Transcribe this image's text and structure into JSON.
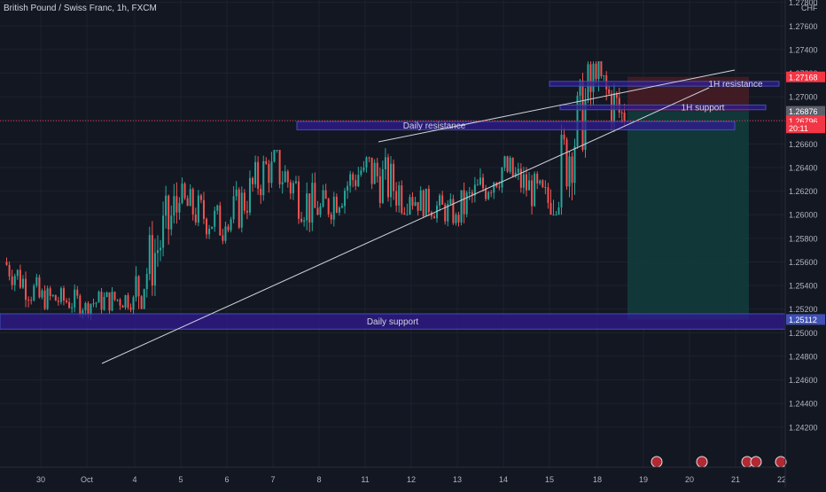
{
  "header": {
    "symbol_title": "British Pound / Swiss Franc, 1h, FXCM"
  },
  "colors": {
    "background": "#131722",
    "bull": "#26a69a",
    "bear": "#ef5350",
    "zone_fill": "#311b92",
    "zone_border": "#3f51b5",
    "trendline": "#d1d4dc",
    "grid": "#1e222d",
    "axis_text": "#b2b5be",
    "stop_zone": "#4a1c24",
    "target_zone": "#123d3d"
  },
  "chart_data": {
    "type": "candlestick",
    "title": "British Pound / Swiss Franc, 1h, FXCM",
    "currency": "CHF",
    "ylim": [
      1.2386,
      1.2782
    ],
    "y_ticks": [
      "1.27800",
      "1.27600",
      "1.27400",
      "1.27200",
      "1.27000",
      "1.26800",
      "1.26600",
      "1.26400",
      "1.26200",
      "1.26000",
      "1.25800",
      "1.25600",
      "1.25400",
      "1.25200",
      "1.25000",
      "1.24800",
      "1.24600",
      "1.24400",
      "1.24200"
    ],
    "x_ticks": [
      "30",
      "Oct",
      "4",
      "5",
      "6",
      "7",
      "8",
      "11",
      "12",
      "13",
      "14",
      "15",
      "18",
      "19",
      "20",
      "21",
      "22"
    ],
    "price_badges": [
      {
        "label": "1.27168",
        "value": 1.27168,
        "color": "#f23645"
      },
      {
        "label": "1.26876",
        "value": 1.26876,
        "color": "#5d606b"
      },
      {
        "label": "1.26796",
        "value": 1.26796,
        "color": "#f23645"
      },
      {
        "label": "20:11",
        "value": 1.26736,
        "color": "#f23645"
      },
      {
        "label": "1.25112",
        "value": 1.25112,
        "color": "#3f51b5"
      }
    ],
    "zones": [
      {
        "label": "Daily resistance",
        "y_top": 1.2679,
        "y_bottom": 1.2672,
        "x_start": "8",
        "x_end": "19+"
      },
      {
        "label": "Daily support",
        "y_top": 1.2516,
        "y_bottom": 1.2503,
        "x_start": "start",
        "x_end": "end"
      },
      {
        "label": "1H resistance",
        "y_top": 1.2713,
        "y_bottom": 1.2709,
        "x_start": "15",
        "x_end": "21"
      },
      {
        "label": "1H support",
        "y_top": 1.2693,
        "y_bottom": 1.2689,
        "x_start": "15",
        "x_end": "21"
      }
    ],
    "trendlines": [
      {
        "name": "upper",
        "points": [
          [
            1.2679,
            "11"
          ],
          [
            1.2734,
            "21"
          ]
        ]
      },
      {
        "name": "lower",
        "points": [
          [
            1.2502,
            "Oct"
          ],
          [
            1.2722,
            "20"
          ]
        ]
      }
    ],
    "last_price": 1.26796,
    "position": {
      "entry": 1.26876,
      "stop": 1.27168,
      "target": 1.25112
    },
    "series": [
      {
        "date": "29",
        "open": 1.256,
        "high": 1.2575,
        "low": 1.252,
        "close": 1.253
      },
      {
        "date": "30",
        "open": 1.253,
        "high": 1.2545,
        "low": 1.2505,
        "close": 1.2525
      },
      {
        "date": "Oct",
        "open": 1.2525,
        "high": 1.254,
        "low": 1.2502,
        "close": 1.253
      },
      {
        "date": "4",
        "open": 1.253,
        "high": 1.263,
        "low": 1.252,
        "close": 1.261
      },
      {
        "date": "5",
        "open": 1.261,
        "high": 1.264,
        "low": 1.2575,
        "close": 1.259
      },
      {
        "date": "6",
        "open": 1.259,
        "high": 1.266,
        "low": 1.2585,
        "close": 1.2645
      },
      {
        "date": "7",
        "open": 1.2645,
        "high": 1.2655,
        "low": 1.2575,
        "close": 1.26
      },
      {
        "date": "8",
        "open": 1.26,
        "high": 1.2655,
        "low": 1.259,
        "close": 1.264
      },
      {
        "date": "11",
        "open": 1.264,
        "high": 1.268,
        "low": 1.26,
        "close": 1.2615
      },
      {
        "date": "12",
        "open": 1.2615,
        "high": 1.2625,
        "low": 1.258,
        "close": 1.26
      },
      {
        "date": "13",
        "open": 1.26,
        "high": 1.2655,
        "low": 1.259,
        "close": 1.264
      },
      {
        "date": "14",
        "open": 1.264,
        "high": 1.265,
        "low": 1.259,
        "close": 1.261
      },
      {
        "date": "15",
        "open": 1.261,
        "high": 1.273,
        "low": 1.26,
        "close": 1.2715
      },
      {
        "date": "18",
        "open": 1.2715,
        "high": 1.273,
        "low": 1.264,
        "close": 1.268
      }
    ]
  }
}
